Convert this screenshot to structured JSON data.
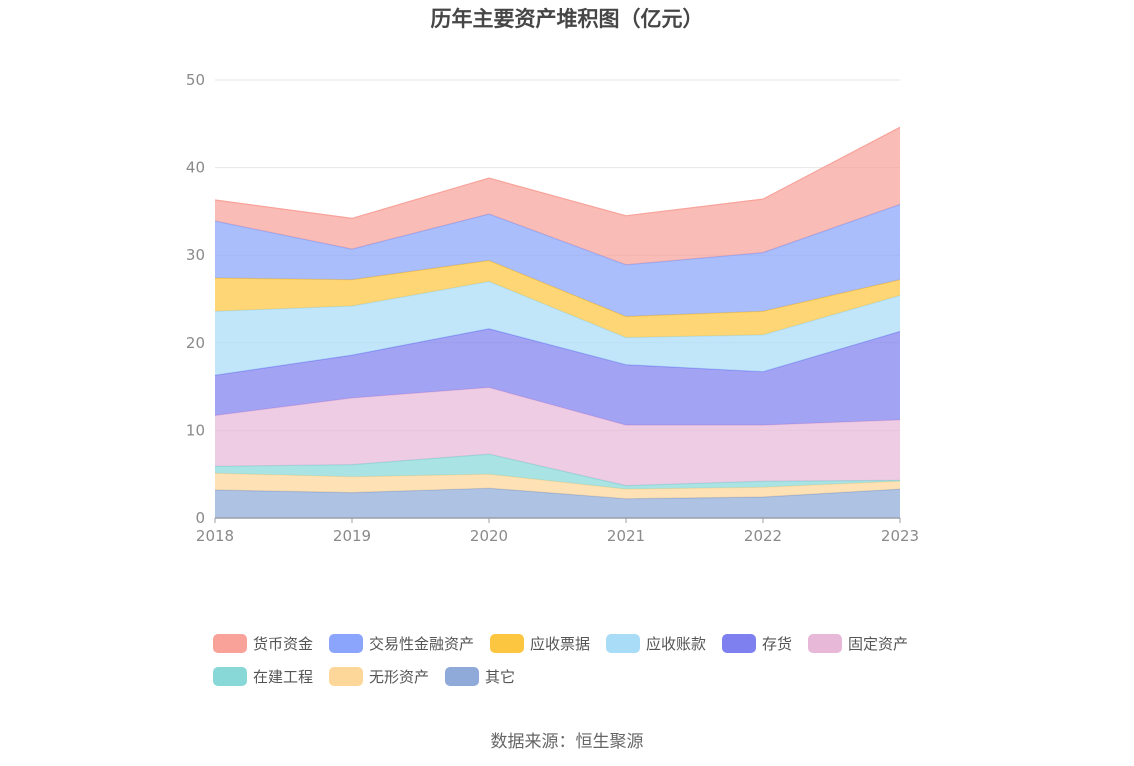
{
  "chart_data": {
    "type": "area",
    "stacked": true,
    "title": "历年主要资产堆积图（亿元）",
    "xlabel": "",
    "ylabel": "",
    "x": [
      "2018",
      "2019",
      "2020",
      "2021",
      "2022",
      "2023"
    ],
    "ylim": [
      0,
      50
    ],
    "yticks": [
      0,
      10,
      20,
      30,
      40,
      50
    ],
    "grid": true,
    "legend_position": "bottom",
    "series": [
      {
        "name": "其它",
        "color": "#8faad8",
        "values": [
          3.2,
          2.9,
          3.4,
          2.2,
          2.4,
          3.3
        ]
      },
      {
        "name": "无形资产",
        "color": "#fdd79a",
        "values": [
          1.9,
          1.8,
          1.6,
          1.1,
          1.1,
          0.9
        ]
      },
      {
        "name": "在建工程",
        "color": "#88d8d8",
        "values": [
          0.8,
          1.4,
          2.3,
          0.4,
          0.7,
          0.1
        ]
      },
      {
        "name": "固定资产",
        "color": "#e7b8d8",
        "values": [
          5.8,
          7.6,
          7.6,
          6.9,
          6.4,
          6.9
        ]
      },
      {
        "name": "存货",
        "color": "#7f80f0",
        "values": [
          4.6,
          4.9,
          6.7,
          6.9,
          6.1,
          10.1
        ]
      },
      {
        "name": "应收账款",
        "color": "#a9dcf7",
        "values": [
          7.3,
          5.6,
          5.4,
          3.1,
          4.2,
          4.1
        ]
      },
      {
        "name": "应收票据",
        "color": "#fdc640",
        "values": [
          3.8,
          3.0,
          2.4,
          2.4,
          2.7,
          1.8
        ]
      },
      {
        "name": "交易性金融资产",
        "color": "#8aa5fb",
        "values": [
          6.5,
          3.5,
          5.3,
          5.9,
          6.7,
          8.6
        ]
      },
      {
        "name": "货币资金",
        "color": "#f8a29a",
        "values": [
          2.4,
          3.5,
          4.1,
          5.6,
          6.1,
          8.8
        ]
      }
    ],
    "legend_order": [
      "货币资金",
      "交易性金融资产",
      "应收票据",
      "应收账款",
      "存货",
      "固定资产",
      "在建工程",
      "无形资产",
      "其它"
    ]
  },
  "source_text": "数据来源：恒生聚源"
}
